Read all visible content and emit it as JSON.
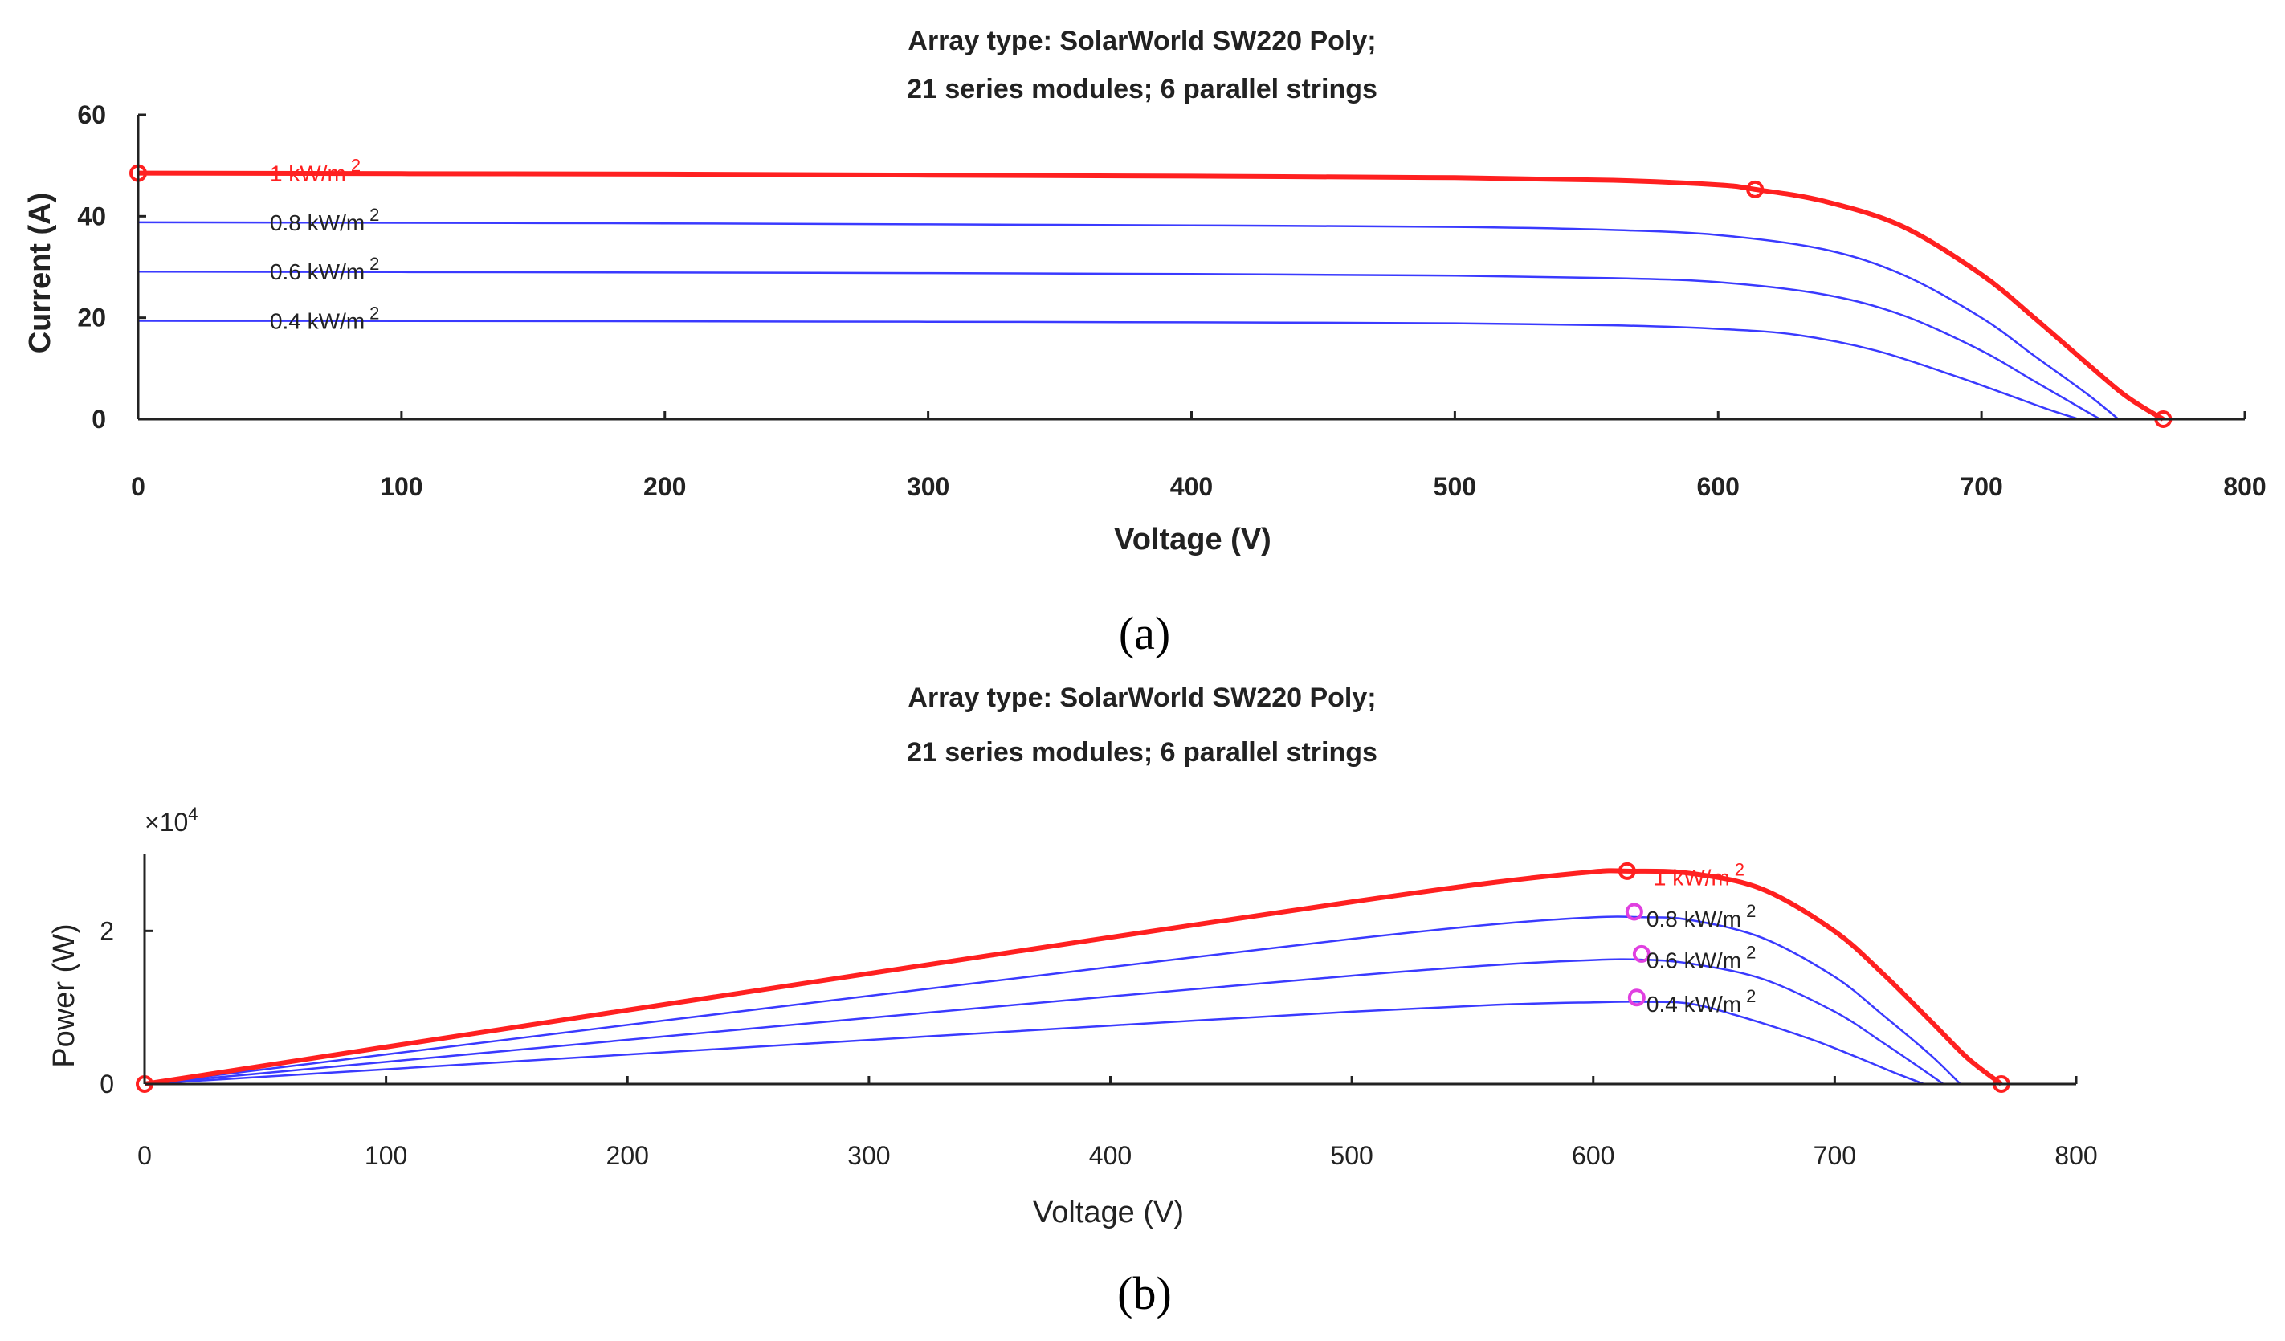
{
  "chart_data": [
    {
      "type": "line",
      "panel_label": "(a)",
      "title_lines": [
        "Array type: SolarWorld SW220 Poly;",
        "21 series modules; 6 parallel strings"
      ],
      "xlabel": "Voltage (V)",
      "ylabel": "Current (A)",
      "xlim": [
        0,
        800
      ],
      "ylim": [
        0,
        60
      ],
      "xticks": [
        0,
        100,
        200,
        300,
        400,
        500,
        600,
        700,
        800
      ],
      "yticks": [
        0,
        20,
        40,
        60
      ],
      "series": [
        {
          "name": "1 kW/m",
          "color": "#ff2020",
          "width": 6,
          "x": [
            0,
            100,
            200,
            300,
            400,
            500,
            560,
            600,
            614,
            640,
            670,
            700,
            720,
            740,
            755,
            769
          ],
          "y": [
            48.5,
            48.4,
            48.3,
            48.1,
            47.9,
            47.6,
            47.1,
            46.2,
            45.3,
            43.0,
            38.0,
            28.5,
            20.0,
            11.0,
            4.5,
            0
          ]
        },
        {
          "name": "0.8 kW/m",
          "color": "#3a3aff",
          "width": 2.5,
          "x": [
            0,
            100,
            200,
            300,
            400,
            500,
            560,
            600,
            640,
            670,
            700,
            720,
            740,
            752
          ],
          "y": [
            38.8,
            38.7,
            38.6,
            38.4,
            38.2,
            37.9,
            37.3,
            36.3,
            33.5,
            28.5,
            20.0,
            12.5,
            5.0,
            0
          ]
        },
        {
          "name": "0.6 kW/m",
          "color": "#3a3aff",
          "width": 2.5,
          "x": [
            0,
            100,
            200,
            300,
            400,
            500,
            560,
            600,
            640,
            670,
            700,
            720,
            735,
            745
          ],
          "y": [
            29.1,
            29.0,
            28.9,
            28.8,
            28.6,
            28.3,
            27.8,
            27.0,
            24.6,
            20.5,
            13.5,
            7.5,
            3.0,
            0
          ]
        },
        {
          "name": "0.4 kW/m",
          "color": "#3a3aff",
          "width": 2.5,
          "x": [
            0,
            100,
            200,
            300,
            400,
            500,
            560,
            600,
            630,
            660,
            690,
            710,
            725,
            737
          ],
          "y": [
            19.4,
            19.35,
            19.3,
            19.2,
            19.1,
            18.9,
            18.5,
            17.8,
            16.6,
            13.5,
            8.5,
            4.8,
            2.0,
            0
          ]
        }
      ],
      "markers": [
        {
          "x": 0,
          "y": 48.5
        },
        {
          "x": 614,
          "y": 45.3
        },
        {
          "x": 769,
          "y": 0
        }
      ],
      "curve_labels": [
        {
          "text": "1 kW/m",
          "sup": "2",
          "color": "#ff2020",
          "x": 50,
          "y": 48.5
        },
        {
          "text": "0.8 kW/m",
          "sup": "2",
          "color": "#222222",
          "x": 50,
          "y": 38.8
        },
        {
          "text": "0.6 kW/m",
          "sup": "2",
          "color": "#222222",
          "x": 50,
          "y": 29.1
        },
        {
          "text": "0.4 kW/m",
          "sup": "2",
          "color": "#222222",
          "x": 50,
          "y": 19.4
        }
      ]
    },
    {
      "type": "line",
      "panel_label": "(b)",
      "title_lines": [
        "Array type:  SolarWorld SW220 Poly;",
        "21 series modules; 6 parallel strings"
      ],
      "xlabel": "Voltage (V)",
      "ylabel": "Power (W)",
      "ylabel_color": "#b04020",
      "multiplier_base": "×10",
      "multiplier_exp": "4",
      "xlim": [
        0,
        800
      ],
      "ylim": [
        0,
        3
      ],
      "xticks": [
        0,
        100,
        200,
        300,
        400,
        500,
        600,
        700,
        800
      ],
      "yticks": [
        0,
        2
      ],
      "series": [
        {
          "name": "1 kW/m",
          "color": "#ff2020",
          "width": 6,
          "x": [
            0,
            100,
            200,
            300,
            400,
            500,
            560,
            600,
            614,
            640,
            670,
            700,
            720,
            740,
            755,
            769
          ],
          "y": [
            0,
            0.484,
            0.966,
            1.443,
            1.916,
            2.38,
            2.638,
            2.772,
            2.781,
            2.752,
            2.546,
            1.995,
            1.44,
            0.814,
            0.34,
            0
          ]
        },
        {
          "name": "0.8 kW/m",
          "color": "#3a3aff",
          "width": 2.5,
          "x": [
            0,
            100,
            200,
            300,
            400,
            500,
            560,
            600,
            620,
            640,
            670,
            700,
            720,
            740,
            752
          ],
          "y": [
            0,
            0.387,
            0.772,
            1.152,
            1.528,
            1.895,
            2.089,
            2.178,
            2.18,
            2.144,
            1.91,
            1.4,
            0.9,
            0.37,
            0
          ]
        },
        {
          "name": "0.6 kW/m",
          "color": "#3a3aff",
          "width": 2.5,
          "x": [
            0,
            100,
            200,
            300,
            400,
            500,
            560,
            600,
            620,
            640,
            670,
            700,
            720,
            735,
            745
          ],
          "y": [
            0,
            0.29,
            0.578,
            0.864,
            1.144,
            1.415,
            1.557,
            1.62,
            1.625,
            1.574,
            1.374,
            0.945,
            0.54,
            0.22,
            0
          ]
        },
        {
          "name": "0.4 kW/m",
          "color": "#3a3aff",
          "width": 2.5,
          "x": [
            0,
            100,
            200,
            300,
            400,
            500,
            560,
            600,
            620,
            640,
            660,
            690,
            710,
            725,
            737
          ],
          "y": [
            0,
            0.193,
            0.386,
            0.576,
            0.764,
            0.945,
            1.036,
            1.068,
            1.075,
            1.05,
            0.891,
            0.587,
            0.341,
            0.145,
            0
          ]
        }
      ],
      "markers": [
        {
          "x": 0,
          "y": 0,
          "color": "#ff2020"
        },
        {
          "x": 614,
          "y": 2.781,
          "color": "#ff2020"
        },
        {
          "x": 769,
          "y": 0,
          "color": "#ff2020"
        },
        {
          "x": 617,
          "y": 2.25,
          "color": "#e040e0"
        },
        {
          "x": 620,
          "y": 1.7,
          "color": "#e040e0"
        },
        {
          "x": 618,
          "y": 1.13,
          "color": "#e040e0"
        }
      ],
      "curve_labels": [
        {
          "text": "1 kW/m",
          "sup": "2",
          "color": "#ff2020",
          "x": 625,
          "y": 2.7
        },
        {
          "text": "0.8 kW/m",
          "sup": "2",
          "color": "#222222",
          "x": 622,
          "y": 2.16
        },
        {
          "text": "0.6 kW/m",
          "sup": "2",
          "color": "#222222",
          "x": 622,
          "y": 1.62
        },
        {
          "text": "0.4 kW/m",
          "sup": "2",
          "color": "#222222",
          "x": 622,
          "y": 1.05
        }
      ]
    }
  ]
}
